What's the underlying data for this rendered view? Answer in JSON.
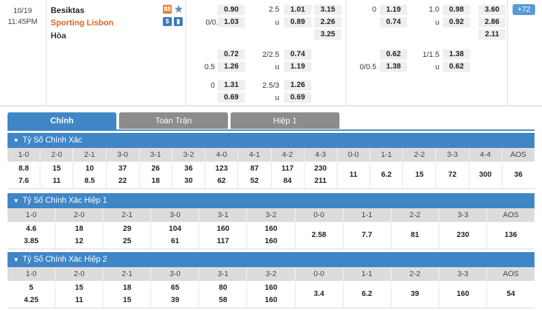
{
  "match": {
    "date": "10/19",
    "time": "11:45PM",
    "home": "Besiktas",
    "away": "Sporting Lisbon",
    "draw": "Hòa",
    "icons": {
      "live": "live-score-icon",
      "star": "star-icon",
      "dollar": "dollar-icon",
      "stats": "stats-icon"
    },
    "icon_glyphs": {
      "live": "88",
      "star": "★",
      "dollar": "$",
      "stats": "▮"
    },
    "more": "+72",
    "ft_1x2": {
      "home": "0.90",
      "away": "1.03"
    },
    "ft_ou_hdp": {
      "line1": "2.5",
      "line2": "0/0.5",
      "u": "u"
    },
    "ft_ou": {
      "over": "1.01",
      "under": "0.89"
    },
    "ft_1x2b": {
      "home": "3.15",
      "away": "2.26",
      "draw": "3.25"
    },
    "row2": {
      "h1": "0.72",
      "h2": "1.26",
      "hcp": "0.5",
      "ouLine": "2/2.5",
      "o": "0.74",
      "u_lbl": "u",
      "u": "1.19"
    },
    "row3": {
      "hcp": "0",
      "h1": "1.31",
      "h2": "0.69",
      "ouLine": "2.5/3",
      "o": "1.26",
      "u_lbl": "u",
      "u": "0.69"
    },
    "h1": {
      "hcp": "0",
      "h1": "1.19",
      "h2": "0.74",
      "ouLine": "1.0",
      "o": "0.98",
      "u_lbl": "u",
      "u": "0.92",
      "x1": "3.60",
      "x2": "2.86",
      "xd": "2.11",
      "r2_h1": "0.62",
      "r2_hcp": "0/0.5",
      "r2_h2": "1.38",
      "r2_ouLine": "1/1.5",
      "r2_o": "1.38",
      "r2_u_lbl": "u",
      "r2_u": "0.62"
    }
  },
  "tabs": {
    "main": "Chính",
    "full": "Toàn Trận",
    "half": "Hiệp 1"
  },
  "sections": [
    {
      "title": "Tỷ Số Chính Xác",
      "headers": [
        "1-0",
        "2-0",
        "2-1",
        "3-0",
        "3-1",
        "3-2",
        "4-0",
        "4-1",
        "4-2",
        "4-3",
        "0-0",
        "1-1",
        "2-2",
        "3-3",
        "4-4",
        "AOS"
      ],
      "top": [
        "8.8",
        "15",
        "10",
        "37",
        "26",
        "36",
        "123",
        "87",
        "117",
        "230",
        "",
        "",
        "",
        "",
        "",
        ""
      ],
      "bot": [
        "7.6",
        "11",
        "8.5",
        "22",
        "18",
        "30",
        "62",
        "52",
        "84",
        "211",
        "",
        "",
        "",
        "",
        "",
        ""
      ],
      "single": [
        "",
        "",
        "",
        "",
        "",
        "",
        "",
        "",
        "",
        "",
        "11",
        "6.2",
        "15",
        "72",
        "300",
        "36"
      ]
    },
    {
      "title": "Tỷ Số Chính Xác Hiệp 1",
      "headers": [
        "1-0",
        "2-0",
        "2-1",
        "3-0",
        "3-1",
        "3-2",
        "0-0",
        "1-1",
        "2-2",
        "3-3",
        "AOS"
      ],
      "top": [
        "4.6",
        "18",
        "29",
        "104",
        "160",
        "160",
        "",
        "",
        "",
        "",
        ""
      ],
      "bot": [
        "3.85",
        "12",
        "25",
        "61",
        "117",
        "160",
        "",
        "",
        "",
        "",
        ""
      ],
      "single": [
        "",
        "",
        "",
        "",
        "",
        "",
        "2.58",
        "7.7",
        "81",
        "230",
        "136"
      ]
    },
    {
      "title": "Tỷ Số Chính Xác Hiệp 2",
      "headers": [
        "1-0",
        "2-0",
        "2-1",
        "3-0",
        "3-1",
        "3-2",
        "0-0",
        "1-1",
        "2-2",
        "3-3",
        "AOS"
      ],
      "top": [
        "5",
        "15",
        "18",
        "65",
        "80",
        "160",
        "",
        "",
        "",
        "",
        ""
      ],
      "bot": [
        "4.25",
        "11",
        "15",
        "39",
        "58",
        "160",
        "",
        "",
        "",
        "",
        ""
      ],
      "single": [
        "",
        "",
        "",
        "",
        "",
        "",
        "3.4",
        "6.2",
        "39",
        "160",
        "54"
      ]
    }
  ],
  "colors": {
    "accent": "#3f86c7",
    "away_team": "#e0651c",
    "tab_inactive": "#8c8c8c"
  }
}
